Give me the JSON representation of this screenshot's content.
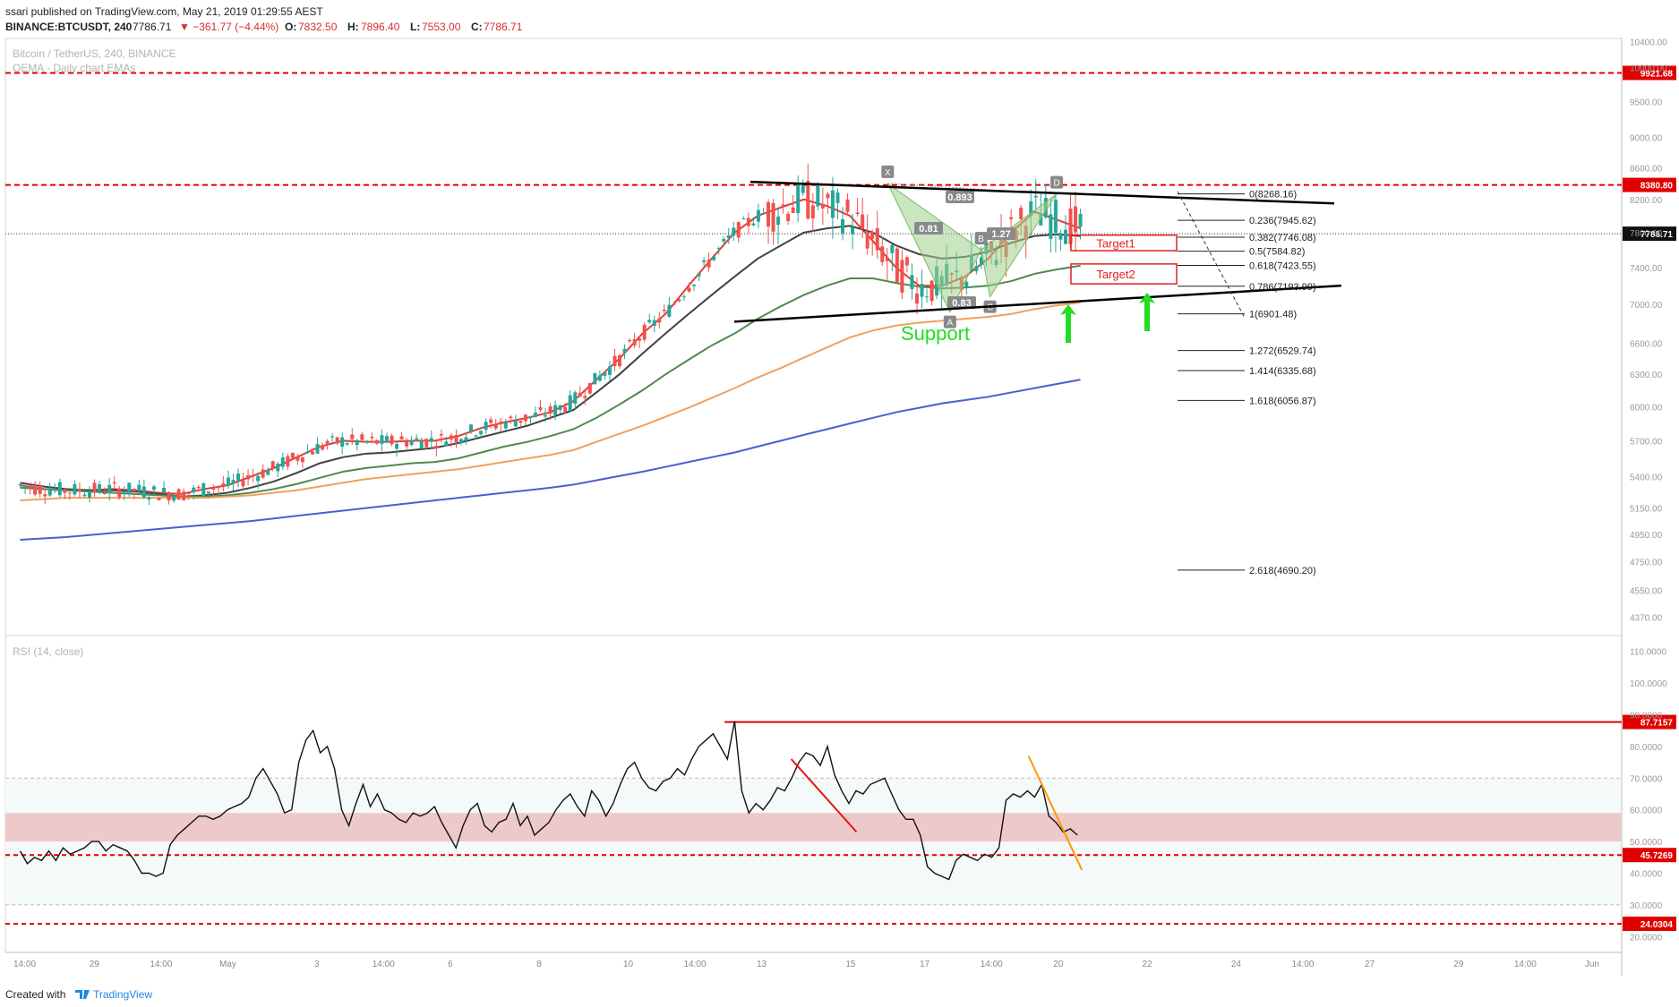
{
  "header": {
    "publisher_line": "ssari published on TradingView.com, May 21, 2019 01:29:55 AEST",
    "symbol": "BINANCE:BTCUSDT, 240",
    "last": "7786.71",
    "change": "▼ −361.77 (−4.44%)",
    "o_label": "O:",
    "o": "7832.50",
    "h_label": "H:",
    "h": "7896.40",
    "l_label": "L:",
    "l": "7553.00",
    "c_label": "C:",
    "c": "7786.71"
  },
  "legend": {
    "title": "Bitcoin / TetherUS, 240, BINANCE",
    "indicator": "OEMA - Daily chart EMAs"
  },
  "footer": {
    "created_with": "Created with",
    "brand": "TradingView"
  },
  "colors": {
    "bull": "#26a69a",
    "bear": "#ef5350",
    "ema_fast": "#e53935",
    "ema_mid": "#424242",
    "ema_green": "#4e8a4e",
    "ema_orange": "#f0a060",
    "ema_blue": "#4a5fd0",
    "level_red": "#e00000",
    "support_green": "#22dd22",
    "pattern_fill": "#9ecf8a"
  },
  "chart_data": [
    {
      "type": "candlestick",
      "title": "Bitcoin / TetherUS, 240, BINANCE",
      "ylim": [
        4250,
        10450
      ],
      "y_scale": "log",
      "y_ticks": [
        4370,
        4550,
        4750,
        4950,
        5150,
        5400,
        5700,
        6000,
        6300,
        6600,
        7000,
        7400,
        7800,
        8200,
        8600,
        9000,
        9500,
        10000,
        10400
      ],
      "y_tick_labels": [
        "4370.00",
        "4550.00",
        "4750.00",
        "4950.00",
        "5150.00",
        "5400.00",
        "5700.00",
        "6000.00",
        "6300.00",
        "6600.00",
        "7000.00",
        "7400.00",
        "7800.00",
        "8200.00",
        "8600.00",
        "9000.00",
        "9500.00",
        "10000.00",
        "10400.00"
      ],
      "x_ticks": [
        "14:00",
        "29",
        "14:00",
        "May",
        "3",
        "14:00",
        "6",
        "8",
        "10",
        "14:00",
        "13",
        "15",
        "17",
        "14:00",
        "20",
        "22",
        "24",
        "14:00",
        "27",
        "29",
        "14:00",
        "Jun"
      ],
      "x_tick_positions": [
        0.3,
        5,
        9.5,
        14,
        20,
        24.5,
        29,
        35,
        41,
        45.5,
        50,
        56,
        61,
        65.5,
        70,
        76,
        82,
        86.5,
        91,
        97,
        101.5,
        106
      ],
      "candles_ohlc_sample_anchor": {
        "start": 5300,
        "end": 7786.71
      },
      "last_price": 7786.71,
      "price_levels": [
        {
          "label": "9921.68",
          "value": 9921.68,
          "style": "dashed"
        },
        {
          "label": "8380.80",
          "value": 8380.8,
          "style": "dashed"
        }
      ],
      "fib_levels": [
        {
          "label": "0(8268.16)",
          "value": 8268.16
        },
        {
          "label": "0.236(7945.62)",
          "value": 7945.62
        },
        {
          "label": "0.382(7746.08)",
          "value": 7746.08
        },
        {
          "label": "0.5(7584.82)",
          "value": 7584.82
        },
        {
          "label": "0.618(7423.55)",
          "value": 7423.55
        },
        {
          "label": "0.786(7193.99)",
          "value": 7193.99
        },
        {
          "label": "1(6901.48)",
          "value": 6901.48
        },
        {
          "label": "1.272(6529.74)",
          "value": 6529.74
        },
        {
          "label": "1.414(6335.68)",
          "value": 6335.68
        },
        {
          "label": "1.618(6056.87)",
          "value": 6056.87
        },
        {
          "label": "2.618(4690.20)",
          "value": 4690.2
        }
      ],
      "pattern_points": [
        {
          "label": "X",
          "t": 58.5,
          "value": 8400
        },
        {
          "label": "A",
          "t": 62.7,
          "value": 6920
        },
        {
          "label": "B",
          "t": 64.8,
          "value": 7600
        },
        {
          "label": "C",
          "t": 65.4,
          "value": 7080
        },
        {
          "label": "D",
          "t": 69.9,
          "value": 8268
        }
      ],
      "pattern_ratios": [
        "0.893",
        "0.81",
        "0.83",
        "1.27"
      ],
      "targets": [
        {
          "label": "Target1",
          "top": 7770,
          "bottom": 7590
        },
        {
          "label": "Target2",
          "top": 7440,
          "bottom": 7220
        }
      ],
      "annotation_text": "Support",
      "ema_series": [
        {
          "key": "ema_fast",
          "values": [
            5330,
            5300,
            5290,
            5290,
            5300,
            5290,
            5270,
            5260,
            5300,
            5330,
            5400,
            5470,
            5560,
            5650,
            5700,
            5690,
            5690,
            5700,
            5700,
            5740,
            5810,
            5860,
            5900,
            5950,
            6050,
            6250,
            6450,
            6700,
            6900,
            7200,
            7500,
            7800,
            8000,
            8100,
            8200,
            8120,
            8000,
            7700,
            7400,
            7200,
            7200,
            7300,
            7500,
            7800,
            8050,
            7950,
            7850
          ]
        },
        {
          "key": "ema_mid",
          "values": [
            5350,
            5320,
            5300,
            5290,
            5290,
            5280,
            5260,
            5240,
            5250,
            5270,
            5310,
            5360,
            5430,
            5510,
            5560,
            5590,
            5600,
            5620,
            5640,
            5680,
            5730,
            5780,
            5830,
            5900,
            5970,
            6130,
            6300,
            6500,
            6700,
            6900,
            7100,
            7300,
            7500,
            7650,
            7800,
            7850,
            7880,
            7800,
            7650,
            7550,
            7500,
            7520,
            7580,
            7680,
            7760,
            7780,
            7760
          ]
        },
        {
          "key": "ema_green",
          "values": [
            5310,
            5300,
            5290,
            5280,
            5270,
            5260,
            5250,
            5240,
            5240,
            5250,
            5270,
            5300,
            5340,
            5390,
            5440,
            5470,
            5490,
            5510,
            5520,
            5550,
            5600,
            5650,
            5690,
            5740,
            5800,
            5900,
            6020,
            6150,
            6300,
            6440,
            6580,
            6700,
            6850,
            6980,
            7100,
            7200,
            7280,
            7280,
            7230,
            7190,
            7170,
            7180,
            7200,
            7250,
            7330,
            7380,
            7420
          ]
        },
        {
          "key": "ema_orange",
          "values": [
            5210,
            5220,
            5230,
            5230,
            5230,
            5230,
            5230,
            5230,
            5230,
            5240,
            5250,
            5270,
            5290,
            5320,
            5350,
            5380,
            5400,
            5420,
            5440,
            5460,
            5490,
            5520,
            5550,
            5580,
            5620,
            5690,
            5760,
            5830,
            5910,
            5990,
            6080,
            6170,
            6270,
            6360,
            6460,
            6560,
            6660,
            6730,
            6780,
            6810,
            6830,
            6850,
            6870,
            6900,
            6950,
            6990,
            7020
          ]
        },
        {
          "key": "ema_blue",
          "values": [
            4910,
            4920,
            4930,
            4945,
            4960,
            4975,
            4990,
            5005,
            5020,
            5035,
            5050,
            5070,
            5090,
            5110,
            5130,
            5150,
            5170,
            5190,
            5210,
            5230,
            5250,
            5270,
            5290,
            5310,
            5335,
            5370,
            5405,
            5440,
            5480,
            5520,
            5560,
            5600,
            5650,
            5700,
            5750,
            5800,
            5850,
            5900,
            5950,
            5990,
            6030,
            6060,
            6090,
            6130,
            6170,
            6210,
            6250
          ]
        }
      ],
      "ema_t_end": 71.5
    },
    {
      "type": "line",
      "title": "RSI (14, close)",
      "ylim": [
        15,
        115
      ],
      "y_ticks": [
        20,
        30,
        40,
        50,
        60,
        70,
        80,
        90,
        100,
        110
      ],
      "y_tick_labels": [
        "20.0000",
        "30.0000",
        "40.0000",
        "50.0000",
        "60.0000",
        "70.0000",
        "80.0000",
        "90.0000",
        "100.0000",
        "110.0000"
      ],
      "band": [
        30,
        70
      ],
      "zone": [
        50,
        59
      ],
      "levels": [
        {
          "label": "87.7157",
          "value": 87.7157,
          "style": "solid",
          "from_t": 47.5
        },
        {
          "label": "45.7269",
          "value": 45.7269,
          "style": "dashed"
        },
        {
          "label": "24.0304",
          "value": 24.0304,
          "style": "dashed"
        }
      ],
      "values": [
        47,
        43,
        45,
        44,
        47,
        44,
        48,
        46,
        47,
        48,
        50,
        50,
        47,
        49,
        48,
        47,
        44,
        40,
        40,
        39,
        40,
        49,
        52,
        54,
        56,
        58,
        58,
        57,
        58,
        60,
        61,
        62,
        64,
        70,
        73,
        69,
        65,
        59,
        60,
        75,
        82,
        85,
        78,
        80,
        73,
        60,
        55,
        62,
        68,
        61,
        65,
        60,
        59,
        57,
        56,
        59,
        58,
        59,
        61,
        56,
        52,
        48,
        55,
        60,
        62,
        55,
        53,
        56,
        57,
        62,
        55,
        58,
        52,
        54,
        56,
        60,
        63,
        65,
        61,
        58,
        66,
        63,
        58,
        62,
        68,
        73,
        75,
        70,
        67,
        66,
        69,
        70,
        73,
        71,
        76,
        80,
        82,
        84,
        80,
        76,
        88,
        66,
        59,
        62,
        60,
        63,
        67,
        66,
        70,
        75,
        78,
        77,
        74,
        80,
        71,
        66,
        62,
        66,
        65,
        68,
        69,
        70,
        65,
        60,
        57,
        57,
        52,
        42,
        40,
        39,
        38,
        44,
        46,
        45,
        44,
        46,
        45,
        48,
        63,
        65,
        64,
        66,
        64,
        68,
        58,
        56,
        53,
        54,
        52
      ],
      "trend_lines": [
        {
          "color": "#ee1111",
          "from": [
            52.0,
            76
          ],
          "to": [
            56.4,
            53
          ]
        },
        {
          "color": "#ff9900",
          "from": [
            68.0,
            77
          ],
          "to": [
            71.6,
            41
          ]
        }
      ]
    }
  ]
}
